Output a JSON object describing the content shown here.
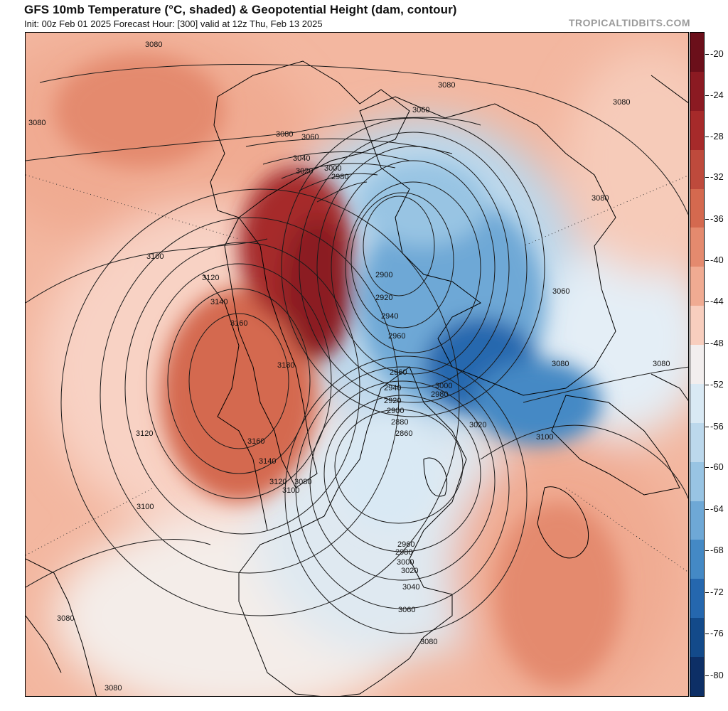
{
  "header": {
    "title": "GFS 10mb Temperature (°C, shaded) & Geopotential Height (dam, contour)",
    "subtitle": "Init: 00z Feb 01 2025   Forecast Hour: [300]   valid at 12z Thu, Feb 13 2025",
    "brand": "TROPICALTIDBITS.COM"
  },
  "colorbar": {
    "labels": [
      "-20",
      "-24",
      "-28",
      "-32",
      "-36",
      "-40",
      "-44",
      "-48",
      "-52",
      "-56",
      "-60",
      "-64",
      "-68",
      "-72",
      "-76",
      "-80"
    ],
    "colors": [
      "#6b0f1a",
      "#8b1a22",
      "#a62a2a",
      "#be4a3c",
      "#d4694f",
      "#e48a6e",
      "#f0ab92",
      "#f8cebe",
      "#f2eeee",
      "#d9e9f4",
      "#bcd8ec",
      "#98c4e3",
      "#6ea8d6",
      "#4489c5",
      "#2567ae",
      "#134a8a",
      "#0d2f66"
    ]
  },
  "map": {
    "contour_labels": [
      {
        "name": "label-3080-nw",
        "text": "3080"
      },
      {
        "name": "label-3080-west",
        "text": "3080"
      },
      {
        "name": "label-3080-north",
        "text": "3080"
      },
      {
        "name": "label-3060-north",
        "text": "3060"
      },
      {
        "name": "label-3080-ne",
        "text": "3080"
      },
      {
        "name": "label-3080-siberia",
        "text": "3080"
      },
      {
        "name": "label-3080-alaska",
        "text": "3080"
      },
      {
        "name": "label-3060-alaska",
        "text": "3060"
      },
      {
        "name": "label-3040",
        "text": "3040"
      },
      {
        "name": "label-3020",
        "text": "3020"
      },
      {
        "name": "label-3000",
        "text": "3000"
      },
      {
        "name": "label-2980",
        "text": "2980"
      },
      {
        "name": "label-3100-pacific",
        "text": "3100"
      },
      {
        "name": "label-3120-pacific",
        "text": "3120"
      },
      {
        "name": "label-3140-pacific",
        "text": "3140"
      },
      {
        "name": "label-3160-pacific",
        "text": "3160"
      },
      {
        "name": "label-3180",
        "text": "3180"
      },
      {
        "name": "label-2900-pole",
        "text": "2900"
      },
      {
        "name": "label-2920-pole",
        "text": "2920"
      },
      {
        "name": "label-2940-pole",
        "text": "2940"
      },
      {
        "name": "label-2960-pole",
        "text": "2960"
      },
      {
        "name": "label-3060-russia",
        "text": "3060"
      },
      {
        "name": "label-3080-europe",
        "text": "3080"
      },
      {
        "name": "label-3080-east",
        "text": "3080"
      },
      {
        "name": "label-2960-canada",
        "text": "2960"
      },
      {
        "name": "label-2940-canada",
        "text": "2940"
      },
      {
        "name": "label-2980-canada",
        "text": "2980"
      },
      {
        "name": "label-3000-greenland",
        "text": "3000"
      },
      {
        "name": "label-2920-canada",
        "text": "2920"
      },
      {
        "name": "label-2900-canada",
        "text": "2900"
      },
      {
        "name": "label-2880-canada",
        "text": "2880"
      },
      {
        "name": "label-2860-canada",
        "text": "2860"
      },
      {
        "name": "label-3020-atlantic",
        "text": "3020"
      },
      {
        "name": "label-3100-atlantic",
        "text": "3100"
      },
      {
        "name": "label-3120-sw",
        "text": "3120"
      },
      {
        "name": "label-3160-sw",
        "text": "3160"
      },
      {
        "name": "label-3140-sw",
        "text": "3140"
      },
      {
        "name": "label-3120-coast",
        "text": "3120"
      },
      {
        "name": "label-3080-coast",
        "text": "3080"
      },
      {
        "name": "label-3100-coast",
        "text": "3100"
      },
      {
        "name": "label-3100-south",
        "text": "3100"
      },
      {
        "name": "label-2960-us",
        "text": "2960"
      },
      {
        "name": "label-2980-us",
        "text": "2980"
      },
      {
        "name": "label-3000-us",
        "text": "3000"
      },
      {
        "name": "label-3020-us",
        "text": "3020"
      },
      {
        "name": "label-3040-us",
        "text": "3040"
      },
      {
        "name": "label-3060-us",
        "text": "3060"
      },
      {
        "name": "label-3080-gulf",
        "text": "3080"
      },
      {
        "name": "label-3080-sw",
        "text": "3080"
      },
      {
        "name": "label-3080-bottom",
        "text": "3080"
      }
    ]
  }
}
